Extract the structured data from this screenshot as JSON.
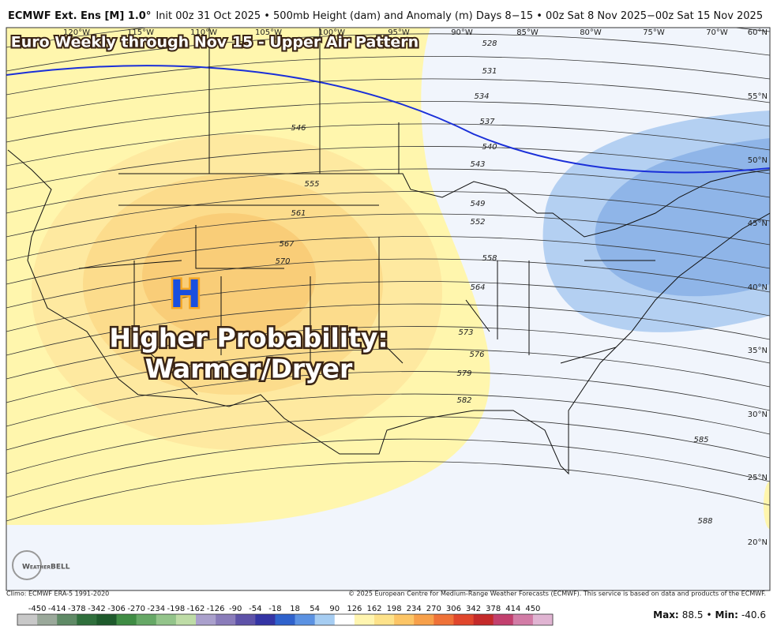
{
  "header": {
    "title_bold": "ECMWF Ext. Ens [M] 1.0°",
    "title_rest": "Init 00z 31 Oct 2025 • 500mb Height (dam) and Anomaly (m)  Days 8−15 • 00z Sat 8 Nov 2025−00z Sat 15 Nov 2025"
  },
  "map": {
    "overlay_title": "Euro Weekly through Nov 15 - Upper Air Pattern",
    "high_marker": "H",
    "annotation_line1": "Higher Probability:",
    "annotation_line2": "Warmer/Dryer",
    "logo": "WeatherBELL",
    "longitude_labels": [
      "120°W",
      "115°W",
      "110°W",
      "105°W",
      "100°W",
      "95°W",
      "90°W",
      "85°W",
      "80°W",
      "75°W",
      "70°W"
    ],
    "latitude_labels": [
      "60°N",
      "55°N",
      "50°N",
      "45°N",
      "40°N",
      "35°N",
      "30°N",
      "25°N",
      "20°N"
    ],
    "contour_labels": [
      528,
      531,
      534,
      537,
      540,
      543,
      546,
      549,
      552,
      555,
      558,
      561,
      564,
      567,
      570,
      573,
      576,
      579,
      582,
      585,
      588
    ]
  },
  "footer": {
    "climo": "Climo: ECMWF ERA-5 1991-2020",
    "copyright": "© 2025 European Centre for Medium-Range Weather Forecasts (ECMWF). This service is based on data and products of the ECMWF.",
    "colorbar": {
      "ticks": [
        -450,
        -414,
        -378,
        -342,
        -306,
        -270,
        -234,
        -198,
        -162,
        -126,
        -90,
        -54,
        -18,
        18,
        54,
        90,
        126,
        162,
        198,
        234,
        270,
        306,
        342,
        378,
        414,
        450
      ],
      "colors": [
        "#c8c8c8",
        "#9aa89a",
        "#5f8a66",
        "#2f6f3c",
        "#1e5a2c",
        "#3f8c44",
        "#66a866",
        "#93c48a",
        "#bedca6",
        "#aaa0cc",
        "#8a7cba",
        "#5e52a8",
        "#3434a4",
        "#2f62cc",
        "#5b92e2",
        "#a6cdf2",
        "#ffffff",
        "#fff5b0",
        "#fde28a",
        "#fcc566",
        "#f7a04a",
        "#ef7238",
        "#e0462c",
        "#c42a2a",
        "#c2406e",
        "#d27ca6",
        "#e0b4d2"
      ]
    },
    "max_label": "Max:",
    "max_value": 88.5,
    "separator": "•",
    "min_label": "Min:",
    "min_value": -40.6
  }
}
